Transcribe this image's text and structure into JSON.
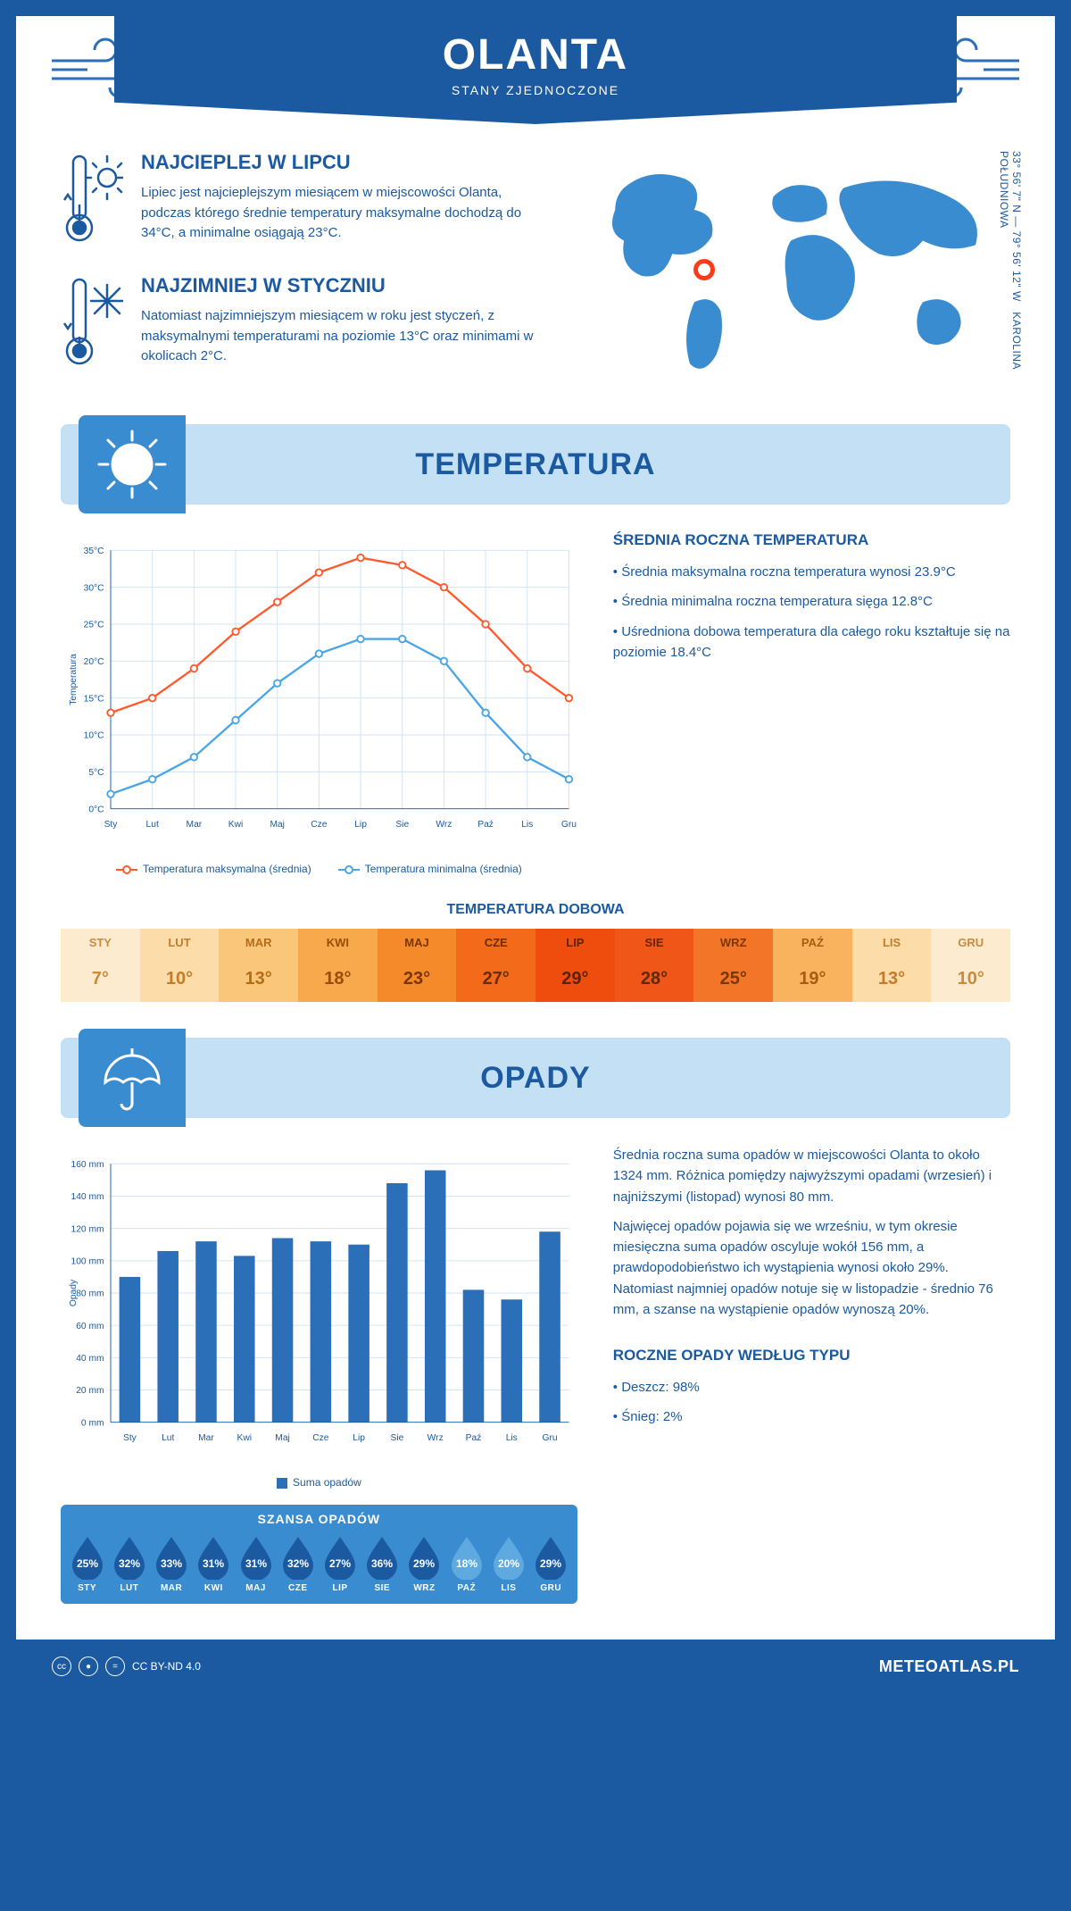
{
  "header": {
    "title": "OLANTA",
    "subtitle": "STANY ZJEDNOCZONE"
  },
  "location": {
    "coords": "33° 56' 7\" N — 79° 56' 12\" W",
    "region": "KAROLINA POŁUDNIOWA",
    "marker": {
      "left_pct": 28,
      "top_pct": 44
    }
  },
  "warmest": {
    "title": "NAJCIEPLEJ W LIPCU",
    "text": "Lipiec jest najcieplejszym miesiącem w miejscowości Olanta, podczas którego średnie temperatury maksymalne dochodzą do 34°C, a minimalne osiągają 23°C."
  },
  "coldest": {
    "title": "NAJZIMNIEJ W STYCZNIU",
    "text": "Natomiast najzimniejszym miesiącem w roku jest styczeń, z maksymalnymi temperaturami na poziomie 13°C oraz minimami w okolicach 2°C."
  },
  "section_temp": "TEMPERATURA",
  "section_precip": "OPADY",
  "months_short": [
    "Sty",
    "Lut",
    "Mar",
    "Kwi",
    "Maj",
    "Cze",
    "Lip",
    "Sie",
    "Wrz",
    "Paź",
    "Lis",
    "Gru"
  ],
  "months_upper": [
    "STY",
    "LUT",
    "MAR",
    "KWI",
    "MAJ",
    "CZE",
    "LIP",
    "SIE",
    "WRZ",
    "PAŹ",
    "LIS",
    "GRU"
  ],
  "temp_chart": {
    "type": "line",
    "ylabel": "Temperatura",
    "ylim": [
      0,
      35
    ],
    "ytick_step": 5,
    "y_suffix": "°C",
    "series": {
      "max": {
        "label": "Temperatura maksymalna (średnia)",
        "color": "#ff5a2e",
        "values": [
          13,
          15,
          19,
          24,
          28,
          32,
          34,
          33,
          30,
          25,
          19,
          15
        ]
      },
      "min": {
        "label": "Temperatura minimalna (średnia)",
        "color": "#4aa5e6",
        "values": [
          2,
          4,
          7,
          12,
          17,
          21,
          23,
          23,
          20,
          13,
          7,
          4
        ]
      }
    },
    "grid_color": "#d0e3f3",
    "background": "#ffffff",
    "marker": "circle"
  },
  "temp_side": {
    "title": "ŚREDNIA ROCZNA TEMPERATURA",
    "bullets": [
      "Średnia maksymalna roczna temperatura wynosi 23.9°C",
      "Średnia minimalna roczna temperatura sięga 12.8°C",
      "Uśredniona dobowa temperatura dla całego roku kształtuje się na poziomie 18.4°C"
    ]
  },
  "daily_temp": {
    "title": "TEMPERATURA DOBOWA",
    "values": [
      7,
      10,
      13,
      18,
      23,
      27,
      29,
      28,
      25,
      19,
      13,
      10
    ],
    "colors_bg": [
      "#fdebd0",
      "#fcdca8",
      "#fac77a",
      "#f7a94b",
      "#f58a2b",
      "#f26a1a",
      "#ef4d0e",
      "#f05617",
      "#f37628",
      "#f9b35e",
      "#fcdca8",
      "#fdebd0"
    ],
    "colors_tx": [
      "#c98b3d",
      "#c27c2a",
      "#b56b17",
      "#9a4d08",
      "#7a3702",
      "#6a2c01",
      "#5c2200",
      "#632700",
      "#7a3702",
      "#a65d12",
      "#c27c2a",
      "#c98b3d"
    ]
  },
  "precip_chart": {
    "type": "bar",
    "ylabel": "Opady",
    "ylim": [
      0,
      160
    ],
    "ytick_step": 20,
    "y_suffix": " mm",
    "bar_color": "#2a6fb8",
    "values": [
      90,
      106,
      112,
      103,
      114,
      112,
      110,
      148,
      156,
      82,
      76,
      118
    ],
    "legend": "Suma opadów",
    "grid_color": "#d0e3f3"
  },
  "precip_text": {
    "p1": "Średnia roczna suma opadów w miejscowości Olanta to około 1324 mm. Różnica pomiędzy najwyższymi opadami (wrzesień) i najniższymi (listopad) wynosi 80 mm.",
    "p2": "Najwięcej opadów pojawia się we wrześniu, w tym okresie miesięczna suma opadów oscyluje wokół 156 mm, a prawdopodobieństwo ich wystąpienia wynosi około 29%. Natomiast najmniej opadów notuje się w listopadzie - średnio 76 mm, a szanse na wystąpienie opadów wynoszą 20%."
  },
  "chance": {
    "title": "SZANSA OPADÓW",
    "values": [
      25,
      32,
      33,
      31,
      31,
      32,
      27,
      36,
      29,
      18,
      20,
      29
    ],
    "fill_dark": "#1b5aa0",
    "fill_light": "#5da9e0"
  },
  "by_type": {
    "title": "ROCZNE OPADY WEDŁUG TYPU",
    "items": [
      "Deszcz: 98%",
      "Śnieg: 2%"
    ]
  },
  "footer": {
    "license": "CC BY-ND 4.0",
    "site": "METEOATLAS.PL"
  }
}
